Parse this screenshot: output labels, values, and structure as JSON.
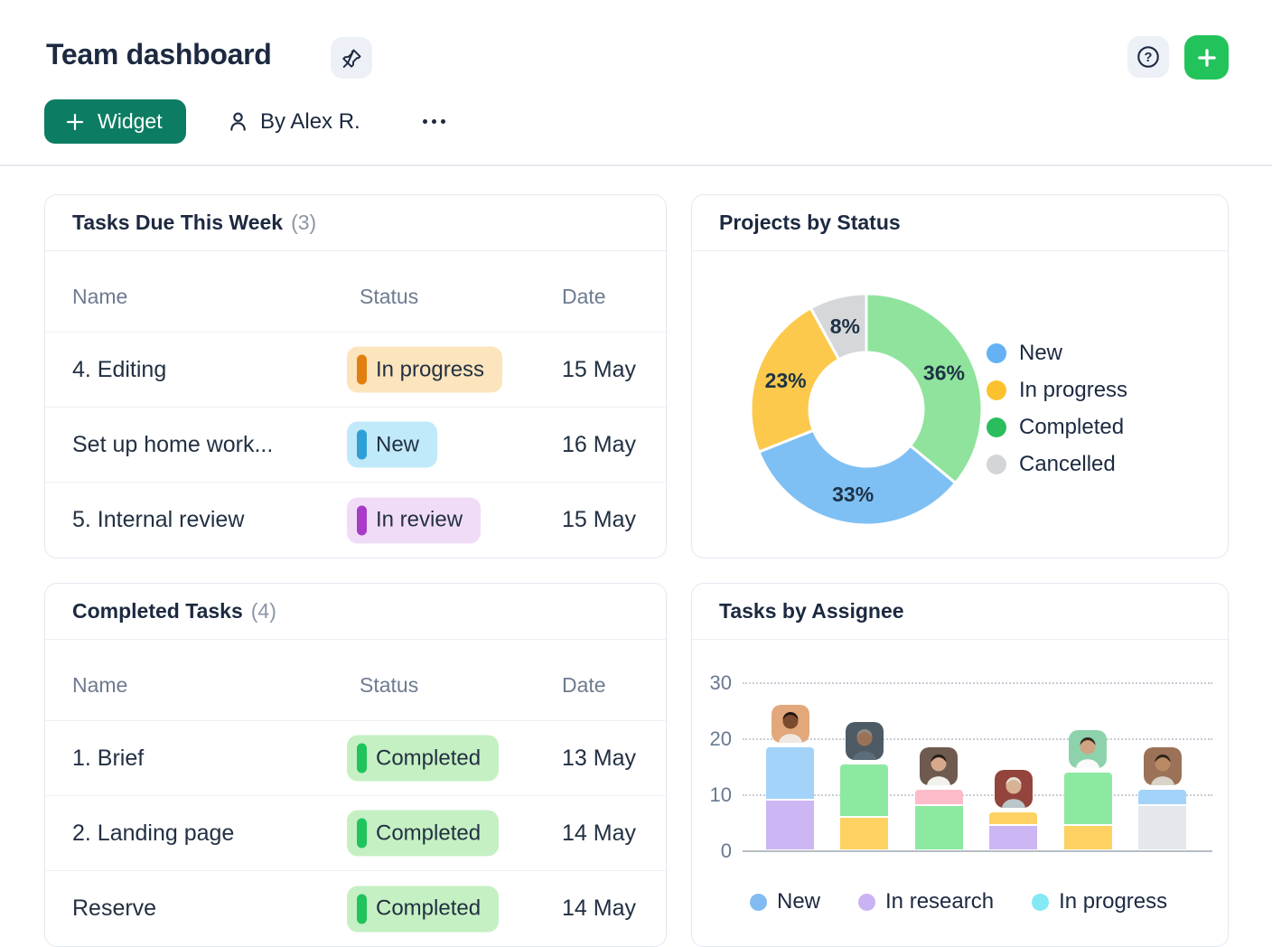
{
  "page": {
    "title": "Team dashboard"
  },
  "toolbar": {
    "widget_button_label": "Widget",
    "byline": "By Alex R."
  },
  "colors": {
    "primary_button_green": "#0c7d62",
    "add_button_green": "#23c35b",
    "title_text": "#1c2940",
    "muted_text": "#6e7b8f",
    "icon_button_bg": "#edf1f7"
  },
  "status_styles": {
    "In progress": {
      "bg": "#fce4bc",
      "bar": "#e2800f"
    },
    "New": {
      "bg": "#c0eaf9",
      "bar": "#2f9fd8"
    },
    "In review": {
      "bg": "#f1dcf7",
      "bar": "#a93bc9"
    },
    "Completed": {
      "bg": "#c5f0c3",
      "bar": "#20c45c"
    }
  },
  "widgets": {
    "tasks_due": {
      "title": "Tasks Due This Week",
      "count": "(3)",
      "columns": [
        "Name",
        "Status",
        "Date"
      ],
      "rows": [
        {
          "name": "4. Editing",
          "status": "In progress",
          "date": "15 May"
        },
        {
          "name": "Set up home work...",
          "status": "New",
          "date": "16 May"
        },
        {
          "name": "5. Internal review",
          "status": "In review",
          "date": "15 May"
        }
      ]
    },
    "completed": {
      "title": "Completed Tasks",
      "count": "(4)",
      "columns": [
        "Name",
        "Status",
        "Date"
      ],
      "rows": [
        {
          "name": "1. Brief",
          "status": "Completed",
          "date": "13 May"
        },
        {
          "name": "2. Landing page",
          "status": "Completed",
          "date": "14 May"
        },
        {
          "name": "Reserve",
          "status": "Completed",
          "date": "14 May"
        }
      ]
    },
    "projects_by_status": {
      "title": "Projects by Status"
    },
    "tasks_by_assignee": {
      "title": "Tasks by Assignee"
    }
  },
  "chart_data": [
    {
      "type": "pie",
      "donut": true,
      "title": "Projects by Status",
      "labels_format": "percent-inside",
      "start_angle_deg": 0,
      "clockwise": true,
      "slices": [
        {
          "label": "Completed",
          "value_pct": 36,
          "color": "#8fe39d"
        },
        {
          "label": "New",
          "value_pct": 33,
          "color": "#7fc0f4"
        },
        {
          "label": "In progress",
          "value_pct": 23,
          "color": "#fcc94c"
        },
        {
          "label": "Cancelled",
          "value_pct": 8,
          "color": "#d6d7d9"
        }
      ],
      "legend_position": "right",
      "legend": [
        {
          "label": "New",
          "color": "#64b1f4"
        },
        {
          "label": "In progress",
          "color": "#fcc12e"
        },
        {
          "label": "Completed",
          "color": "#2abd5e"
        },
        {
          "label": "Cancelled",
          "color": "#d4d5d7"
        }
      ]
    },
    {
      "type": "bar",
      "stacked": true,
      "title": "Tasks by Assignee",
      "ylim": [
        0,
        30
      ],
      "yticks": [
        0,
        10,
        20,
        30
      ],
      "grid": "dotted-horizontal",
      "categories": [
        "assignee-1",
        "assignee-2",
        "assignee-3",
        "assignee-4",
        "assignee-5",
        "assignee-6"
      ],
      "bars": [
        {
          "total": 18.5,
          "segments": [
            {
              "color": "#ccb6f4",
              "value": 9
            },
            {
              "color": "#a3d3f8",
              "value": 9.5
            }
          ]
        },
        {
          "total": 15.5,
          "segments": [
            {
              "color": "#fdd263",
              "value": 6
            },
            {
              "color": "#8ce9a1",
              "value": 9.5
            }
          ]
        },
        {
          "total": 11,
          "segments": [
            {
              "color": "#8ce9a1",
              "value": 8
            },
            {
              "color": "#fcbcc9",
              "value": 3
            }
          ]
        },
        {
          "total": 7,
          "segments": [
            {
              "color": "#ccb6f4",
              "value": 4.5
            },
            {
              "color": "#fdd263",
              "value": 2.5
            }
          ]
        },
        {
          "total": 14,
          "segments": [
            {
              "color": "#fdd263",
              "value": 4.5
            },
            {
              "color": "#8ce9a1",
              "value": 9.5
            }
          ]
        },
        {
          "total": 11,
          "segments": [
            {
              "color": "#e4e8ec",
              "value": 8
            },
            {
              "color": "#a3d3f8",
              "value": 3
            }
          ]
        }
      ],
      "avatars": [
        {
          "bg": "#e2a87c",
          "skin": "#7c4a2d",
          "hair": "#1f1712",
          "shirt": "#efe9e2"
        },
        {
          "bg": "#4e5a64",
          "skin": "#9a7257",
          "hair": "#8d8d89",
          "shirt": "#5b6d79"
        },
        {
          "bg": "#6e5a4e",
          "skin": "#d6a98c",
          "hair": "#241d18",
          "shirt": "#f3f1ec"
        },
        {
          "bg": "#93443c",
          "skin": "#d9b296",
          "hair": "#e5e0d6",
          "shirt": "#b9c7c9"
        },
        {
          "bg": "#8ed2ab",
          "skin": "#cfa383",
          "hair": "#35291f",
          "shirt": "#fafafa"
        },
        {
          "bg": "#9b7257",
          "skin": "#b98a63",
          "hair": "#2e2319",
          "shirt": "#d9d3c8"
        }
      ],
      "legend_position": "bottom",
      "legend": [
        {
          "label": "New",
          "color": "#82bbf2"
        },
        {
          "label": "In research",
          "color": "#c9b3f4"
        },
        {
          "label": "In progress",
          "color": "#83e9f4"
        }
      ]
    }
  ]
}
